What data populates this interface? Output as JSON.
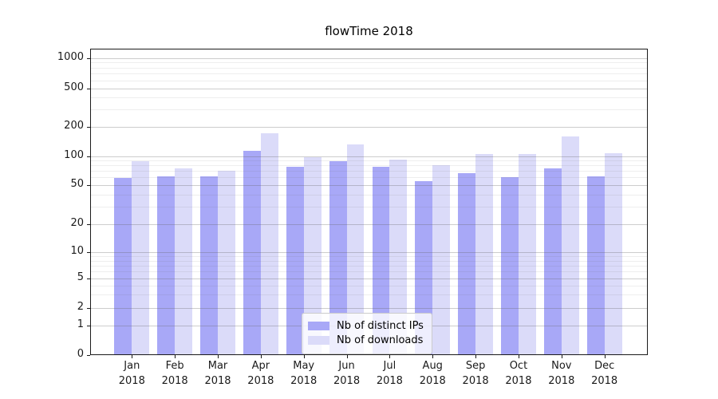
{
  "chart_data": {
    "type": "bar",
    "title": "flowTime 2018",
    "categories": [
      {
        "month": "Jan",
        "year": "2018"
      },
      {
        "month": "Feb",
        "year": "2018"
      },
      {
        "month": "Mar",
        "year": "2018"
      },
      {
        "month": "Apr",
        "year": "2018"
      },
      {
        "month": "May",
        "year": "2018"
      },
      {
        "month": "Jun",
        "year": "2018"
      },
      {
        "month": "Jul",
        "year": "2018"
      },
      {
        "month": "Aug",
        "year": "2018"
      },
      {
        "month": "Sep",
        "year": "2018"
      },
      {
        "month": "Oct",
        "year": "2018"
      },
      {
        "month": "Nov",
        "year": "2018"
      },
      {
        "month": "Dec",
        "year": "2018"
      }
    ],
    "series": [
      {
        "name": "Nb of distinct IPs",
        "color": "#a8a8f7",
        "values": [
          59,
          62,
          62,
          112,
          78,
          88,
          77,
          55,
          67,
          61,
          75,
          62
        ]
      },
      {
        "name": "Nb of downloads",
        "color": "#dbdbf9",
        "values": [
          88,
          75,
          71,
          170,
          97,
          130,
          92,
          81,
          104,
          104,
          158,
          106
        ]
      }
    ],
    "y_axis": {
      "scale": "symlog",
      "ticks": [
        0,
        1,
        2,
        5,
        10,
        20,
        50,
        100,
        200,
        500,
        1000
      ],
      "minor_ticks": [
        3,
        4,
        6,
        7,
        8,
        9,
        30,
        40,
        60,
        70,
        80,
        90,
        300,
        400,
        600,
        700,
        800,
        900
      ],
      "range": [
        0,
        1200
      ]
    },
    "x_axis": {
      "label": ""
    },
    "grid": "on",
    "legend_position": "lower-center"
  }
}
